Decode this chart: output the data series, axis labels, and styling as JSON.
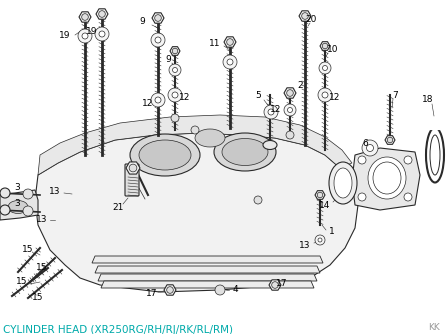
{
  "title": "CYLINDER HEAD (XR250RG/RH/RJ/RK/RL/RM)",
  "title_color": "#00aaaa",
  "background_color": "#ffffff",
  "watermark": "KK",
  "watermark_color": "#999999",
  "fig_width": 4.46,
  "fig_height": 3.34,
  "dpi": 100,
  "title_fontsize": 7.5,
  "watermark_fontsize": 6.5
}
